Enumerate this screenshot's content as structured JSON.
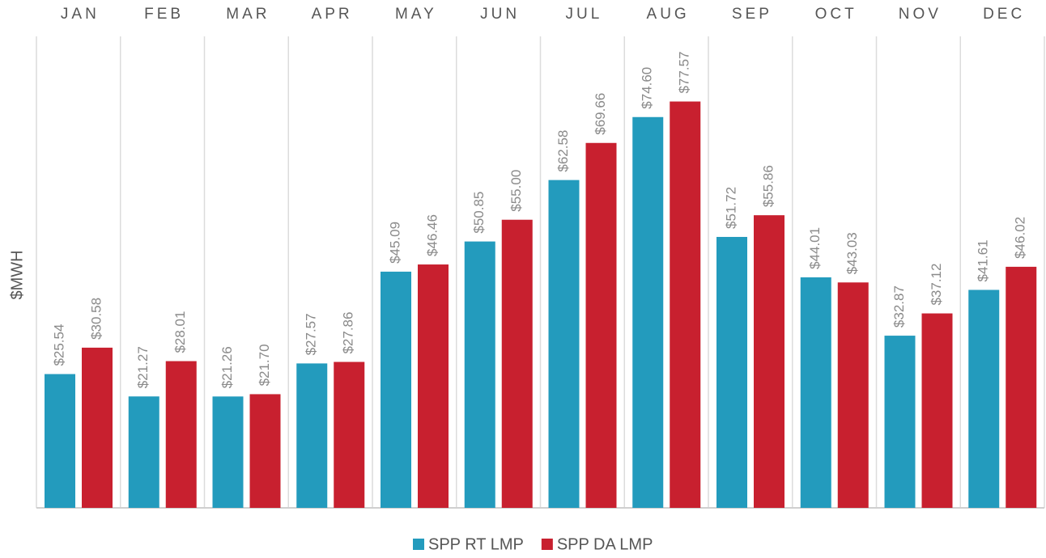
{
  "chart_data": {
    "type": "bar",
    "y_label": "$MWH",
    "categories": [
      "JAN",
      "FEB",
      "MAR",
      "APR",
      "MAY",
      "JUN",
      "JUL",
      "AUG",
      "SEP",
      "OCT",
      "NOV",
      "DEC"
    ],
    "series": [
      {
        "name": "SPP RT LMP",
        "color": "#239bbd",
        "values": [
          25.54,
          21.27,
          21.26,
          27.57,
          45.09,
          50.85,
          62.58,
          74.6,
          51.72,
          44.01,
          32.87,
          41.61
        ],
        "value_labels": [
          "$25.54",
          "$21.27",
          "$21.26",
          "$27.57",
          "$45.09",
          "$50.85",
          "$62.58",
          "$74.60",
          "$51.72",
          "$44.01",
          "$32.87",
          "$41.61"
        ]
      },
      {
        "name": "SPP DA LMP",
        "color": "#c8202f",
        "values": [
          30.58,
          28.01,
          21.7,
          27.86,
          46.46,
          55.0,
          69.66,
          77.57,
          55.86,
          43.03,
          37.12,
          46.02
        ],
        "value_labels": [
          "$30.58",
          "$28.01",
          "$21.70",
          "$27.86",
          "$46.46",
          "$55.00",
          "$69.66",
          "$77.57",
          "$55.86",
          "$43.03",
          "$37.12",
          "$46.02"
        ]
      }
    ],
    "ylim": [
      0,
      90
    ]
  }
}
